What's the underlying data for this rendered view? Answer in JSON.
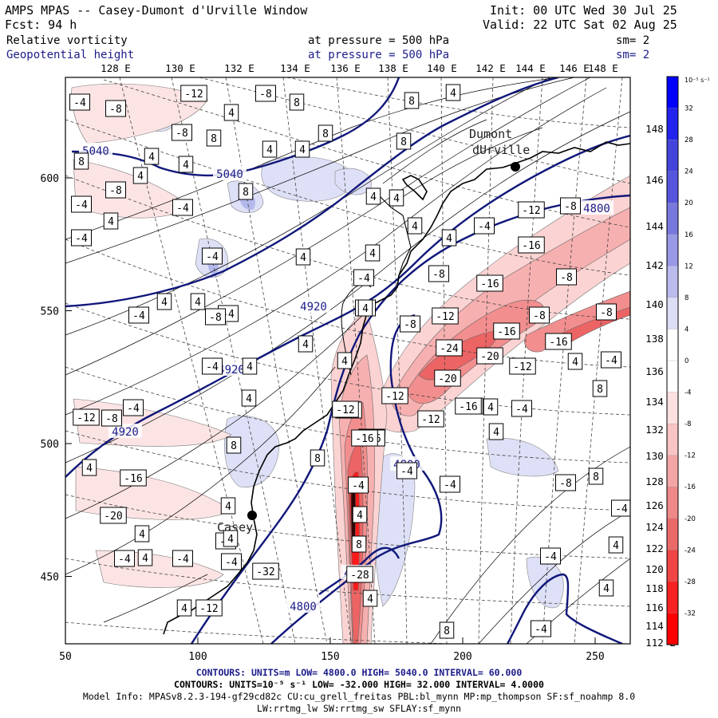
{
  "header": {
    "title": "AMPS MPAS -- Casey-Dumont d'Urville Window",
    "init": "Init: 00 UTC Wed 30 Jul 25",
    "forecast": "Fcst:   94 h",
    "valid": "Valid: 22 UTC Sat 02 Aug 25",
    "field1": {
      "name": "Relative vorticity",
      "pressure": "at pressure =  500 hPa",
      "smooth": "sm= 2"
    },
    "field2": {
      "name": "Geopotential height",
      "pressure": "at pressure =  500 hPa",
      "smooth": "sm= 2"
    }
  },
  "top_lon_labels": [
    "128 E",
    "130 E",
    "132 E",
    "134 E",
    "136 E",
    "138 E",
    "140 E",
    "142 E",
    "144 E",
    "146 E",
    "148 E"
  ],
  "right_lat_labels": [
    "148 E",
    "146 E",
    "144 E",
    "142 E",
    "140 E",
    "138 E",
    "136 E",
    "134 E",
    "132 E",
    "130 E",
    "128 E",
    "126 E",
    "124 E",
    "122 E",
    "120 E",
    "118 E",
    "116 E",
    "114 E",
    "112 E"
  ],
  "x_ticks": [
    "50",
    "100",
    "150",
    "200",
    "250"
  ],
  "y_ticks": [
    "600",
    "550",
    "500",
    "450"
  ],
  "colorbar": {
    "unit": "10⁻⁵ s⁻¹",
    "labels": [
      "32",
      "28",
      "24",
      "20",
      "16",
      "12",
      "8",
      "4",
      "0",
      "-4",
      "-8",
      "-12",
      "-16",
      "-20",
      "-24",
      "-28",
      "-32"
    ],
    "colors": [
      "#0000ff",
      "#2222ee",
      "#4444dd",
      "#5555dd",
      "#7777dd",
      "#9999e6",
      "#bbbbee",
      "#ddddf6",
      "#ffffff",
      "#ffffff",
      "#fde0e0",
      "#f9c4c4",
      "#f4a6a6",
      "#ef8888",
      "#ea6a6a",
      "#f04545",
      "#f82222",
      "#ff0000"
    ]
  },
  "places": {
    "dumont": "Dumont d'Urville",
    "casey": "Casey"
  },
  "contour_labels_height": [
    "5040",
    "5040",
    "4920",
    "4920",
    "4920",
    "4800",
    "4800",
    "4800",
    "4800"
  ],
  "contour_labels_vort": [
    "-4",
    "-8",
    "-12",
    "-8",
    "8",
    "4",
    "4",
    "8",
    "-8",
    "8",
    "4",
    "4",
    "8",
    "8",
    "4",
    "8",
    "4",
    "-4",
    "-4",
    "4",
    "-8",
    "-4",
    "4",
    "8",
    "4",
    "4",
    "-12",
    "4",
    "-8",
    "-4",
    "4",
    "-8",
    "-16",
    "-4",
    "-8",
    "4",
    "4",
    "-8",
    "-4",
    "-16",
    "-16",
    "-8",
    "-4",
    "-12",
    "4",
    "-8",
    "4",
    "-4",
    "4",
    "-24",
    "4",
    "-16",
    "-20",
    "-16",
    "-12",
    "-20",
    "4",
    "-4",
    "4",
    "-4",
    "-12",
    "-12",
    "-16",
    "-12",
    "4",
    "-4",
    "-16",
    "-12",
    "-16",
    "8",
    "4",
    "8",
    "4",
    "-8",
    "-4",
    "-12",
    "-16",
    "-4",
    "4",
    "-4",
    "8",
    "-8",
    "-4",
    "4",
    "-16",
    "-4",
    "-8",
    "-20",
    "4",
    "8",
    "-4",
    "4",
    "-4",
    "-28",
    "-12",
    "8",
    "-4",
    "4",
    "-32",
    "4",
    "-4",
    "-4",
    "8",
    "-4",
    "4",
    "4",
    "4",
    "-4",
    "4",
    "4"
  ],
  "footer": {
    "line1": "CONTOURS: UNITS=m  LOW= 4800.0     HIGH= 5040.0     INTERVAL= 60.000",
    "line2": "CONTOURS: UNITS=10⁻⁵ s⁻¹  LOW= -32.000     HIGH= 32.000     INTERVAL= 4.0000",
    "line3": "Model Info: MPASv8.2.3-194-gf29cd82c CU:cu_grell_freitas PBL:bl_mynn MP:mp_thompson SF:sf_noahmp 8.0",
    "line4": "LW:rrtmg_lw SW:rrtmg_sw SFLAY:sf_mynn"
  }
}
